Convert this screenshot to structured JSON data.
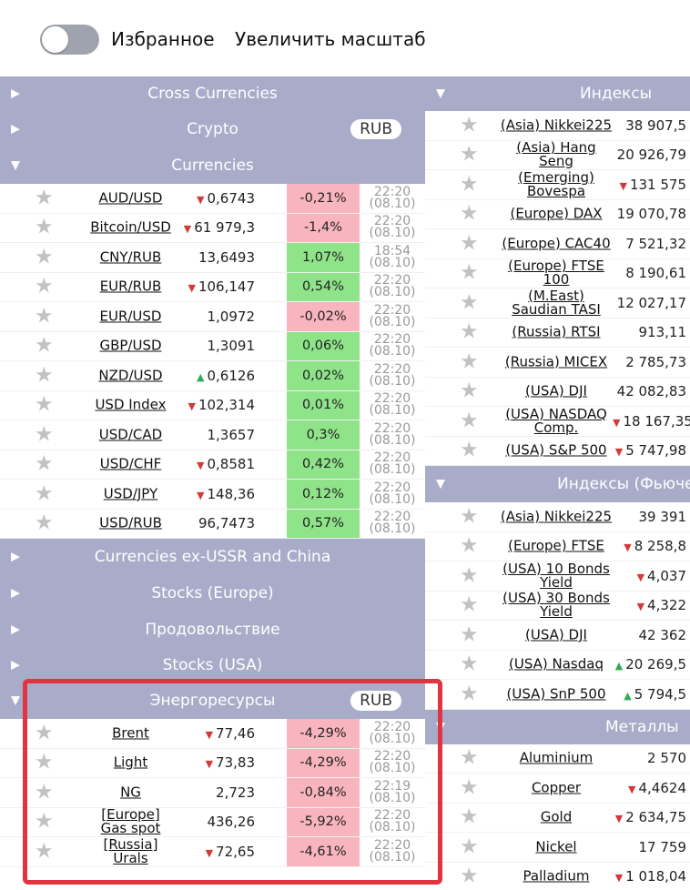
{
  "top": {
    "favorites_label": "Избранное",
    "zoom_label": "Увеличить масштаб"
  },
  "icons": {
    "star": "star-icon",
    "collapsed": "triangle-right-icon",
    "expanded": "triangle-down-icon"
  },
  "colors": {
    "header_bg": "#a8acc9",
    "positive_bg": "#8fe48a",
    "negative_bg": "#f8b5bd",
    "down_arrow": "#d23a3a",
    "up_arrow": "#2faa55",
    "highlight_box": "#e13340"
  },
  "left": {
    "sections": {
      "cross": {
        "title": "Cross Currencies"
      },
      "crypto": {
        "title": "Crypto",
        "badge": "RUB"
      },
      "currencies": {
        "title": "Currencies"
      },
      "exussr": {
        "title": "Currencies ex-USSR and China"
      },
      "stocks_europe": {
        "title": "Stocks (Europe)"
      },
      "food": {
        "title": "Продовольствие"
      },
      "stocks_usa": {
        "title": "Stocks (USA)"
      },
      "energy": {
        "title": "Энергоресурсы",
        "badge": "RUB"
      }
    },
    "currencies": [
      {
        "name": "AUD/USD",
        "trend": "down",
        "value": "0,6743",
        "change": "-0,21%",
        "dir": "neg",
        "time": "22:20",
        "date": "(08.10)"
      },
      {
        "name": "Bitcoin/USD",
        "trend": "down",
        "value": "61 979,3",
        "change": "-1,4%",
        "dir": "neg",
        "time": "22:20",
        "date": "(08.10)"
      },
      {
        "name": "CNY/RUB",
        "trend": "",
        "value": "13,6493",
        "change": "1,07%",
        "dir": "pos",
        "time": "18:54",
        "date": "(08.10)"
      },
      {
        "name": "EUR/RUB",
        "trend": "down",
        "value": "106,147",
        "change": "0,54%",
        "dir": "pos",
        "time": "22:20",
        "date": "(08.10)"
      },
      {
        "name": "EUR/USD",
        "trend": "",
        "value": "1,0972",
        "change": "-0,02%",
        "dir": "neg",
        "time": "22:20",
        "date": "(08.10)"
      },
      {
        "name": "GBP/USD",
        "trend": "",
        "value": "1,3091",
        "change": "0,06%",
        "dir": "pos",
        "time": "22:20",
        "date": "(08.10)"
      },
      {
        "name": "NZD/USD",
        "trend": "up",
        "value": "0,6126",
        "change": "0,02%",
        "dir": "pos",
        "time": "22:20",
        "date": "(08.10)"
      },
      {
        "name": "USD Index",
        "trend": "down",
        "value": "102,314",
        "change": "0,01%",
        "dir": "pos",
        "time": "22:20",
        "date": "(08.10)"
      },
      {
        "name": "USD/CAD",
        "trend": "",
        "value": "1,3657",
        "change": "0,3%",
        "dir": "pos",
        "time": "22:20",
        "date": "(08.10)"
      },
      {
        "name": "USD/CHF",
        "trend": "down",
        "value": "0,8581",
        "change": "0,42%",
        "dir": "pos",
        "time": "22:20",
        "date": "(08.10)"
      },
      {
        "name": "USD/JPY",
        "trend": "down",
        "value": "148,36",
        "change": "0,12%",
        "dir": "pos",
        "time": "22:20",
        "date": "(08.10)"
      },
      {
        "name": "USD/RUB",
        "trend": "",
        "value": "96,7473",
        "change": "0,57%",
        "dir": "pos",
        "time": "22:20",
        "date": "(08.10)"
      }
    ],
    "energy": [
      {
        "name": "Brent",
        "trend": "down",
        "value": "77,46",
        "change": "-4,29%",
        "dir": "neg",
        "time": "22:20",
        "date": "(08.10)"
      },
      {
        "name": "Light",
        "trend": "down",
        "value": "73,83",
        "change": "-4,29%",
        "dir": "neg",
        "time": "22:20",
        "date": "(08.10)"
      },
      {
        "name": "NG",
        "trend": "",
        "value": "2,723",
        "change": "-0,84%",
        "dir": "neg",
        "time": "22:19",
        "date": "(08.10)"
      },
      {
        "name": "[Europe] Gas spot",
        "trend": "",
        "value": "436,26",
        "change": "-5,92%",
        "dir": "neg",
        "time": "22:20",
        "date": "(08.10)"
      },
      {
        "name": "[Russia] Urals",
        "trend": "down",
        "value": "72,65",
        "change": "-4,61%",
        "dir": "neg",
        "time": "22:20",
        "date": "(08.10)"
      }
    ]
  },
  "right": {
    "sections": {
      "indices": {
        "title": "Индексы"
      },
      "futures": {
        "title": "Индексы (Фьючерсы)"
      },
      "metals": {
        "title": "Металлы"
      }
    },
    "indices": [
      {
        "name": "(Asia) Nikkei225",
        "trend": "",
        "value": "38 907,5"
      },
      {
        "name": "(Asia) Hang Seng",
        "trend": "",
        "value": "20 926,79"
      },
      {
        "name": "(Emerging) Bovespa",
        "trend": "down",
        "value": "131 575"
      },
      {
        "name": "(Europe) DAX",
        "trend": "",
        "value": "19 070,78"
      },
      {
        "name": "(Europe) CAC40",
        "trend": "",
        "value": "7 521,32"
      },
      {
        "name": "(Europe) FTSE 100",
        "trend": "",
        "value": "8 190,61"
      },
      {
        "name": "(M.East) Saudian TASI",
        "trend": "",
        "value": "12 027,17"
      },
      {
        "name": "(Russia) RTSI",
        "trend": "",
        "value": "913,11"
      },
      {
        "name": "(Russia) MICEX",
        "trend": "",
        "value": "2 785,73"
      },
      {
        "name": "(USA) DJI",
        "trend": "",
        "value": "42 082,83"
      },
      {
        "name": "(USA) NASDAQ Comp.",
        "trend": "down",
        "value": "18 167,35"
      },
      {
        "name": "(USA) S&P 500",
        "trend": "down",
        "value": "5 747,98"
      }
    ],
    "futures": [
      {
        "name": "(Asia) Nikkei225",
        "trend": "",
        "value": "39 391"
      },
      {
        "name": "(Europe) FTSE",
        "trend": "down",
        "value": "8 258,8"
      },
      {
        "name": "(USA) 10 Bonds Yield",
        "trend": "down",
        "value": "4,037"
      },
      {
        "name": "(USA) 30 Bonds Yield",
        "trend": "down",
        "value": "4,322"
      },
      {
        "name": "(USA) DJI",
        "trend": "",
        "value": "42 362"
      },
      {
        "name": "(USA) Nasdaq",
        "trend": "up",
        "value": "20 269,5"
      },
      {
        "name": "(USA) SnP 500",
        "trend": "up",
        "value": "5 794,5"
      }
    ],
    "metals": [
      {
        "name": "Aluminium",
        "trend": "",
        "value": "2 570"
      },
      {
        "name": "Copper",
        "trend": "down",
        "value": "4,4624"
      },
      {
        "name": "Gold",
        "trend": "down",
        "value": "2 634,75"
      },
      {
        "name": "Nickel",
        "trend": "",
        "value": "17 759"
      },
      {
        "name": "Palladium",
        "trend": "down",
        "value": "1 018,04"
      }
    ]
  }
}
